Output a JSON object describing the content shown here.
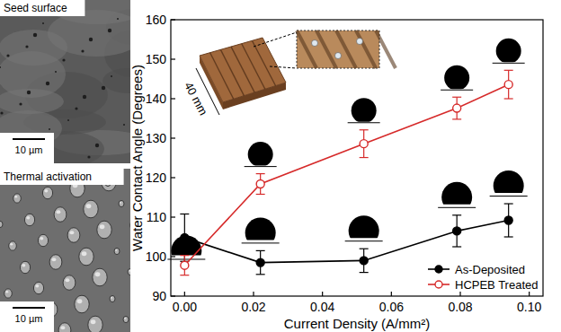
{
  "chart_data": {
    "type": "line",
    "x_label": "Current Density (A/mm²)",
    "y_label": "Water Contact Angle (Degrees)",
    "x": [
      0,
      0.022,
      0.052,
      0.079,
      0.094
    ],
    "series": [
      {
        "name": "As-Deposited",
        "color": "#000000",
        "marker": "circle",
        "line_style": "solid",
        "values": [
          104.8,
          98.5,
          99,
          106.5,
          109.2
        ],
        "errors": [
          6,
          3,
          3,
          4,
          4.2
        ]
      },
      {
        "name": "HCPEB Treated",
        "color": "#d62a2a",
        "marker": "open_circle",
        "line_style": "solid",
        "values": [
          97.8,
          118.4,
          128.6,
          137.6,
          143.6
        ],
        "errors": [
          2.5,
          2.6,
          3.5,
          2.8,
          3.6
        ]
      }
    ],
    "xlim": [
      -0.004,
      0.104
    ],
    "xticks": [
      {
        "value": 0,
        "label": "0.00"
      },
      {
        "value": 0.02,
        "label": "0.02"
      },
      {
        "value": 0.04,
        "label": "0.04"
      },
      {
        "value": 0.06,
        "label": "0.06"
      },
      {
        "value": 0.08,
        "label": "0.08"
      },
      {
        "value": 0.1,
        "label": "0.10"
      }
    ],
    "ylim": [
      90,
      160
    ],
    "yticks": [
      90,
      100,
      110,
      120,
      130,
      140,
      150,
      160
    ],
    "grid": false,
    "legend": "lower-right",
    "annotations": [
      "Seed surface",
      "10 µm",
      "Thermal activation",
      "10 µm",
      "40 mm"
    ]
  }
}
